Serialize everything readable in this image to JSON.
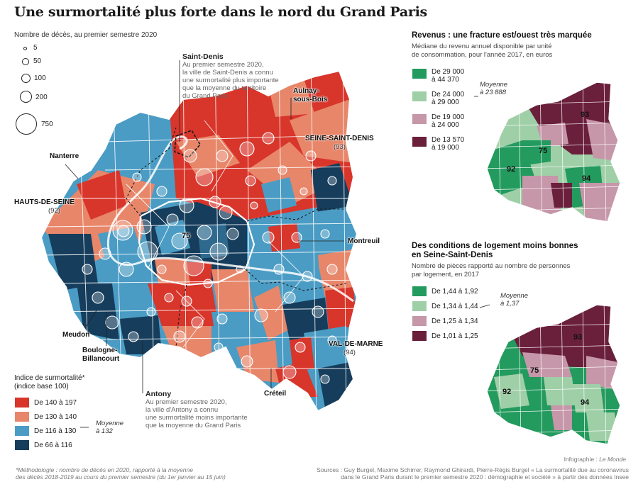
{
  "title": "Une surmortalité plus forte dans le nord du Grand Paris",
  "bubble_legend": {
    "title": "Nombre de décès, au premier semestre 2020",
    "items": [
      "5",
      "50",
      "100",
      "200",
      "750"
    ]
  },
  "callouts": {
    "saint_denis": {
      "name": "Saint-Denis",
      "text": [
        "Au premier semestre 2020,",
        "la ville de Saint-Denis a connu",
        "une surmortalité plus importante",
        "que la moyenne du territoire",
        "du Grand Paris"
      ]
    },
    "antony": {
      "name": "Antony",
      "text": [
        "Au premier semestre 2020,",
        "la ville d'Antony a connu",
        "une surmortalité moins importante",
        "que la moyenne du Grand Paris"
      ]
    }
  },
  "places": {
    "aulnay": [
      "Aulnay-",
      "sous-Bois"
    ],
    "nanterre": "Nanterre",
    "montreuil": "Montreuil",
    "meudon": "Meudon",
    "boulogne": [
      "Boulogne-",
      "Billancourt"
    ],
    "creteil": "Créteil"
  },
  "departments": {
    "seine_saint_denis": "SEINE-SAINT-DENIS",
    "seine_saint_denis_num": "(93)",
    "hauts_de_seine": "HAUTS-DE-SEINE",
    "hauts_de_seine_num": "(92)",
    "val_de_marne": "VAL-DE-MARNE",
    "val_de_marne_num": "(94)",
    "paris_num": "75"
  },
  "excess_legend": {
    "title": [
      "Indice de surmortalité*",
      "(indice base 100)"
    ],
    "items": [
      {
        "label": "De 140 à 197",
        "color": "#d8352b"
      },
      {
        "label": "De 130 à 140",
        "color": "#e8866a"
      },
      {
        "label": "De 116 à 130",
        "color": "#4a9cc4"
      },
      {
        "label": "De 66 à 116",
        "color": "#163d5c"
      }
    ],
    "average": [
      "Moyenne",
      "à 132"
    ]
  },
  "income": {
    "title": "Revenus : une fracture est/ouest très marquée",
    "subtitle": [
      "Médiane du revenu annuel disponible par unité",
      "de consommation, pour l'année 2017, en euros"
    ],
    "items": [
      {
        "label": [
          "De 29 000",
          "à 44 370"
        ],
        "color": "#239a5e"
      },
      {
        "label": [
          "De 24 000",
          "à 29 000"
        ],
        "color": "#9fcfa7"
      },
      {
        "label": [
          "De 19 000",
          "à 24 000"
        ],
        "color": "#c696a9"
      },
      {
        "label": [
          "De 13 570",
          "à 19 000"
        ],
        "color": "#6a1f3b"
      }
    ],
    "average": [
      "Moyenne",
      "à 23 888"
    ],
    "map_labels": [
      "93",
      "75",
      "92",
      "94"
    ]
  },
  "housing": {
    "title": [
      "Des conditions de logement moins bonnes",
      "en Seine-Saint-Denis"
    ],
    "subtitle": [
      "Nombre de pièces rapporté au nombre de personnes",
      "par logement, en 2017"
    ],
    "items": [
      {
        "label": "De 1,44 à 1,92",
        "color": "#239a5e"
      },
      {
        "label": "De 1,34 à 1,44",
        "color": "#9fcfa7"
      },
      {
        "label": "De 1,25 à 1,34",
        "color": "#c696a9"
      },
      {
        "label": "De 1,01 à 1,25",
        "color": "#6a1f3b"
      }
    ],
    "average": [
      "Moyenne",
      "à 1,37"
    ],
    "map_labels": [
      "93",
      "75",
      "92",
      "94"
    ]
  },
  "credit": {
    "prefix": "Infographie : ",
    "name": "Le Monde"
  },
  "footnote": [
    "*Méthodologie : nombre de décès en 2020, rapporté à la moyenne",
    "des décès 2018-2019 au cours du premier semestre (du 1er janvier au 15 juin)"
  ],
  "sources": [
    "Sources : Guy Burgel, Maxime Schirrer, Raymond Ghirardi, Pierre-Régis Burgel « La surmortalité due au coronavirus",
    "dans le Grand Paris durant le premier semestre 2020 : démographie et société » à partir des données Insee"
  ]
}
